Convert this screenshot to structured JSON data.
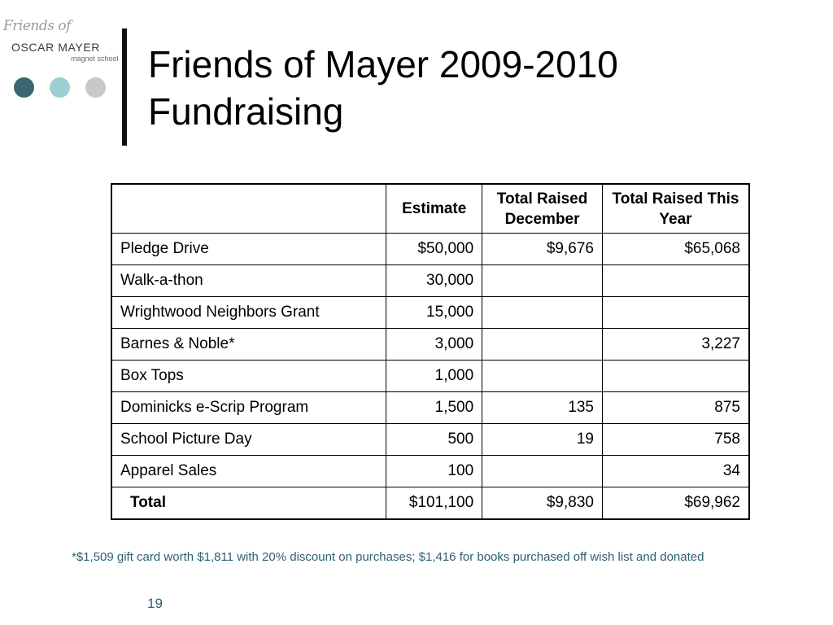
{
  "logo": {
    "script_text": "Friends of",
    "main_text": "OSCAR MAYER",
    "sub_text": "magnet school"
  },
  "decor_colors": [
    "#3a6670",
    "#9ccfd3",
    "#c8c8c8"
  ],
  "slide": {
    "title_line1": "Friends of Mayer 2009-2010",
    "title_line2": "Fundraising",
    "footnote": "*$1,509 gift card worth $1,811 with 20% discount on purchases; $1,416 for books purchased off wish list and donated",
    "page_number": "19"
  },
  "table": {
    "headers": [
      "",
      "Estimate",
      "Total Raised December",
      "Total Raised This Year"
    ],
    "rows": [
      {
        "label": "Pledge Drive",
        "estimate": "$50,000",
        "december": "$9,676",
        "year": "$65,068"
      },
      {
        "label": "Walk-a-thon",
        "estimate": "30,000",
        "december": "",
        "year": ""
      },
      {
        "label": "Wrightwood Neighbors Grant",
        "estimate": "15,000",
        "december": "",
        "year": ""
      },
      {
        "label": "Barnes & Noble*",
        "estimate": "3,000",
        "december": "",
        "year": "3,227"
      },
      {
        "label": "Box Tops",
        "estimate": "1,000",
        "december": "",
        "year": ""
      },
      {
        "label": "Dominicks e-Scrip Program",
        "estimate": "1,500",
        "december": "135",
        "year": "875"
      },
      {
        "label": "School Picture Day",
        "estimate": "500",
        "december": "19",
        "year": "758"
      },
      {
        "label": "Apparel Sales",
        "estimate": "100",
        "december": "",
        "year": "34"
      }
    ],
    "total": {
      "label": "Total",
      "estimate": "$101,100",
      "december": "$9,830",
      "year": "$69,962"
    }
  }
}
